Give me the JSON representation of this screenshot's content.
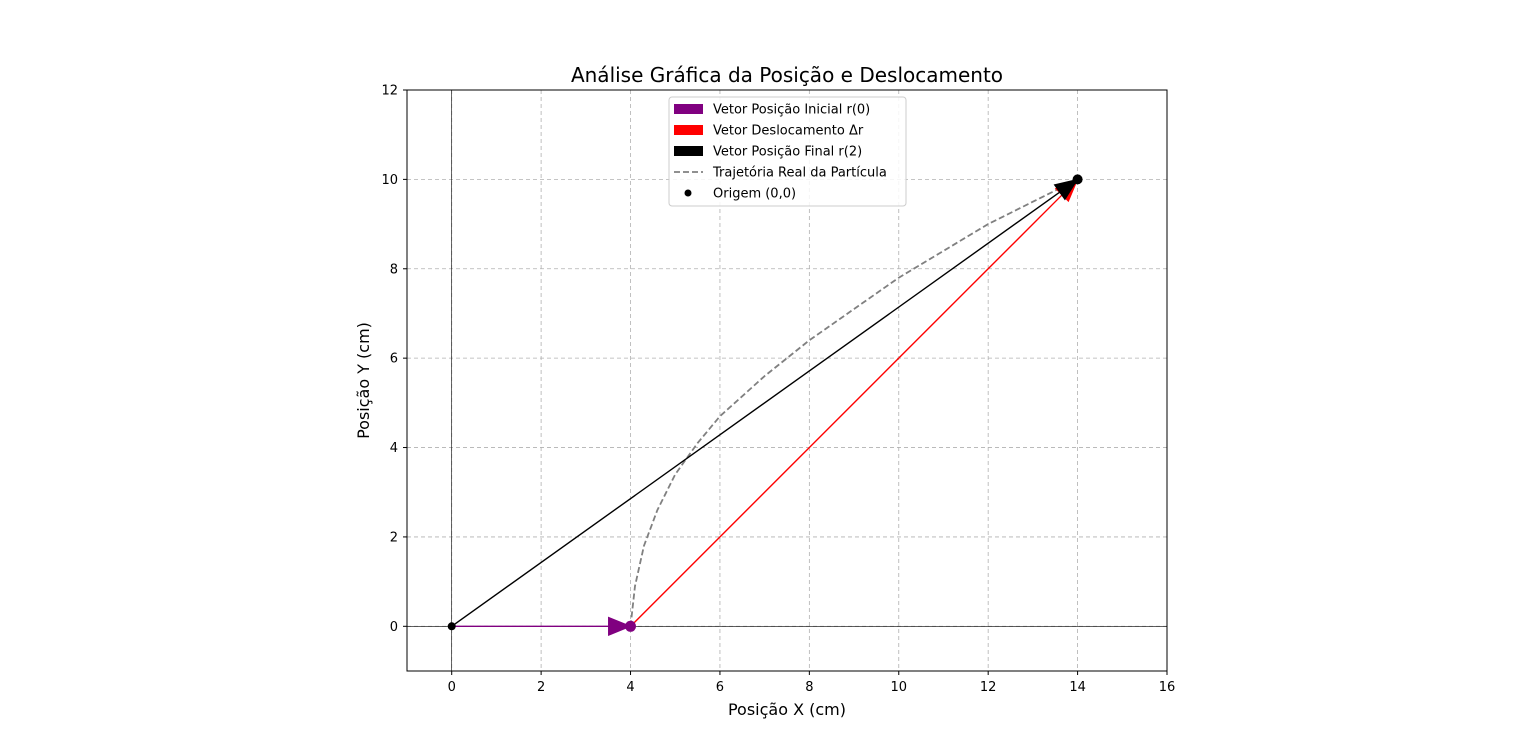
{
  "chart_data": {
    "type": "line",
    "title": "Análise Gráfica da Posição e Deslocamento",
    "xlabel": "Posição X (cm)",
    "ylabel": "Posição Y (cm)",
    "xlim": [
      -1,
      16
    ],
    "ylim": [
      -1,
      12
    ],
    "xticks": [
      0,
      2,
      4,
      6,
      8,
      10,
      12,
      14,
      16
    ],
    "yticks": [
      0,
      2,
      4,
      6,
      8,
      10,
      12
    ],
    "grid": true,
    "legend_position": "top-center",
    "vectors": [
      {
        "name": "Vetor Posição Inicial r(0)",
        "from": [
          0,
          0
        ],
        "to": [
          4,
          0
        ],
        "color": "#800080"
      },
      {
        "name": "Vetor Deslocamento Δr",
        "from": [
          4,
          0
        ],
        "to": [
          14,
          10
        ],
        "color": "#ff0000"
      },
      {
        "name": "Vetor Posição Final r(2)",
        "from": [
          0,
          0
        ],
        "to": [
          14,
          10
        ],
        "color": "#000000"
      }
    ],
    "trajectory": {
      "name": "Trajetória Real da Partícula",
      "color": "#808080",
      "x": [
        4.0,
        4.1,
        4.3,
        4.6,
        5.0,
        5.5,
        6.0,
        7.0,
        8.0,
        9.0,
        10.0,
        11.0,
        12.0,
        13.0,
        14.0
      ],
      "y": [
        0.0,
        0.9,
        1.8,
        2.6,
        3.4,
        4.1,
        4.7,
        5.6,
        6.4,
        7.1,
        7.8,
        8.4,
        9.0,
        9.5,
        10.0
      ]
    },
    "points": [
      {
        "x": 0,
        "y": 0,
        "color": "#000000"
      },
      {
        "x": 4,
        "y": 0,
        "color": "#800080"
      },
      {
        "x": 14,
        "y": 10,
        "color": "#000000"
      }
    ],
    "origin_legend_label": "Origem (0,0)"
  }
}
